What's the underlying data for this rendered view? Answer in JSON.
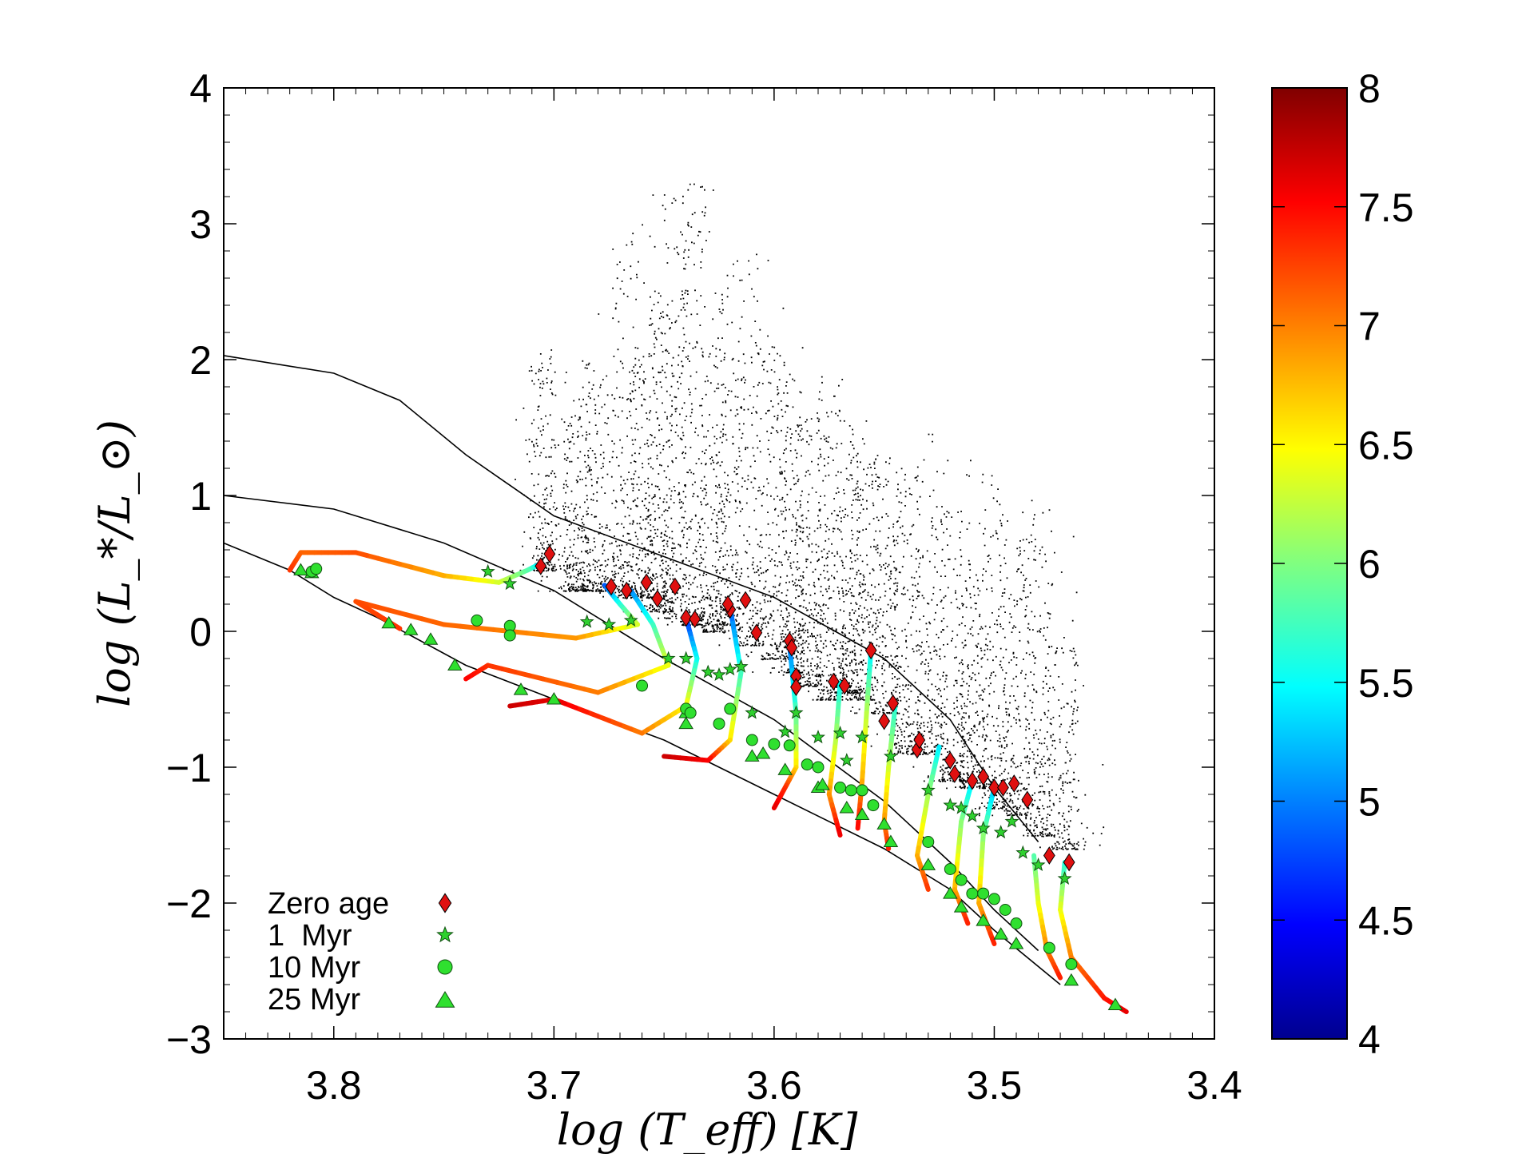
{
  "chart_data": {
    "type": "scatter",
    "title": "",
    "xlabel": "log (T_eff) [K]",
    "ylabel": "log (L_*/L_⊙)",
    "xlim": [
      3.85,
      3.4
    ],
    "ylim": [
      -3,
      4
    ],
    "x_ticks": [
      {
        "value": 3.8,
        "label": "3.8"
      },
      {
        "value": 3.7,
        "label": "3.7"
      },
      {
        "value": 3.6,
        "label": "3.6"
      },
      {
        "value": 3.5,
        "label": "3.5"
      },
      {
        "value": 3.4,
        "label": "3.4"
      }
    ],
    "y_ticks": [
      {
        "value": 4,
        "label": "4"
      },
      {
        "value": 3,
        "label": "3"
      },
      {
        "value": 2,
        "label": "2"
      },
      {
        "value": 1,
        "label": "1"
      },
      {
        "value": 0,
        "label": "0"
      },
      {
        "value": -1,
        "label": "−1"
      },
      {
        "value": -2,
        "label": "−2"
      },
      {
        "value": -3,
        "label": "−3"
      }
    ],
    "colorbar": {
      "range": [
        4,
        8
      ],
      "ticks": [
        {
          "value": 8,
          "label": "8"
        },
        {
          "value": 7.5,
          "label": "7.5"
        },
        {
          "value": 7,
          "label": "7"
        },
        {
          "value": 6.5,
          "label": "6.5"
        },
        {
          "value": 6,
          "label": "6"
        },
        {
          "value": 5.5,
          "label": "5.5"
        },
        {
          "value": 5,
          "label": "5"
        },
        {
          "value": 4.5,
          "label": "4.5"
        },
        {
          "value": 4,
          "label": "4"
        }
      ],
      "colors": [
        "#00008f",
        "#0000ff",
        "#0080ff",
        "#00ffff",
        "#80ff80",
        "#ffff00",
        "#ff8000",
        "#ff0000",
        "#800000"
      ]
    },
    "legend": {
      "position": "bottom-left",
      "entries": [
        {
          "label": "Zero age",
          "marker": "diamond",
          "color": "#e01010"
        },
        {
          "label": "1  Myr",
          "marker": "star",
          "color": "#2fd12f"
        },
        {
          "label": "10 Myr",
          "marker": "circle",
          "color": "#2fe02f"
        },
        {
          "label": "25 Myr",
          "marker": "triangle",
          "color": "#2fe02f"
        }
      ]
    },
    "isochrones": [
      {
        "name": "upper",
        "points": [
          [
            3.85,
            2.03
          ],
          [
            3.8,
            1.9
          ],
          [
            3.77,
            1.7
          ],
          [
            3.74,
            1.3
          ],
          [
            3.7,
            0.85
          ],
          [
            3.65,
            0.55
          ],
          [
            3.6,
            0.25
          ],
          [
            3.55,
            -0.2
          ],
          [
            3.52,
            -0.65
          ],
          [
            3.5,
            -1.15
          ],
          [
            3.48,
            -1.55
          ]
        ]
      },
      {
        "name": "middle",
        "points": [
          [
            3.85,
            1.0
          ],
          [
            3.8,
            0.9
          ],
          [
            3.75,
            0.65
          ],
          [
            3.7,
            0.3
          ],
          [
            3.65,
            -0.2
          ],
          [
            3.6,
            -0.65
          ],
          [
            3.55,
            -1.25
          ],
          [
            3.52,
            -1.7
          ],
          [
            3.5,
            -2.05
          ],
          [
            3.48,
            -2.35
          ]
        ]
      },
      {
        "name": "lower",
        "points": [
          [
            3.85,
            0.65
          ],
          [
            3.82,
            0.45
          ],
          [
            3.8,
            0.25
          ],
          [
            3.78,
            0.1
          ],
          [
            3.74,
            -0.25
          ],
          [
            3.7,
            -0.5
          ],
          [
            3.65,
            -0.8
          ],
          [
            3.6,
            -1.2
          ],
          [
            3.55,
            -1.6
          ],
          [
            3.52,
            -1.9
          ],
          [
            3.5,
            -2.2
          ],
          [
            3.47,
            -2.6
          ]
        ]
      }
    ],
    "tracks": [
      {
        "name": "T1",
        "points": [
          [
            3.706,
            0.5,
            5.2
          ],
          [
            3.712,
            0.45,
            5.8
          ],
          [
            3.725,
            0.36,
            6.3
          ],
          [
            3.75,
            0.41,
            6.8
          ],
          [
            3.79,
            0.58,
            7.2
          ],
          [
            3.815,
            0.58,
            7.1
          ],
          [
            3.82,
            0.45,
            7.3
          ]
        ]
      },
      {
        "name": "T2",
        "points": [
          [
            3.677,
            0.34,
            4.8
          ],
          [
            3.67,
            0.2,
            5.6
          ],
          [
            3.662,
            0.05,
            6.3
          ],
          [
            3.69,
            -0.05,
            6.9
          ],
          [
            3.75,
            0.05,
            7.1
          ],
          [
            3.79,
            0.22,
            7.2
          ],
          [
            3.77,
            0.02,
            7.3
          ]
        ]
      },
      {
        "name": "T3",
        "points": [
          [
            3.665,
            0.3,
            5.0
          ],
          [
            3.655,
            0.05,
            5.7
          ],
          [
            3.648,
            -0.25,
            6.4
          ],
          [
            3.68,
            -0.45,
            7.0
          ],
          [
            3.73,
            -0.25,
            7.3
          ],
          [
            3.74,
            -0.35,
            7.5
          ]
        ]
      },
      {
        "name": "T4",
        "points": [
          [
            3.64,
            0.1,
            4.6
          ],
          [
            3.635,
            -0.2,
            5.5
          ],
          [
            3.64,
            -0.55,
            6.5
          ],
          [
            3.66,
            -0.75,
            7.0
          ],
          [
            3.7,
            -0.5,
            7.6
          ],
          [
            3.72,
            -0.55,
            7.7
          ]
        ]
      },
      {
        "name": "T5",
        "points": [
          [
            3.62,
            0.18,
            4.8
          ],
          [
            3.615,
            -0.3,
            5.7
          ],
          [
            3.62,
            -0.8,
            6.6
          ],
          [
            3.63,
            -0.95,
            7.5
          ],
          [
            3.65,
            -0.92,
            7.7
          ]
        ]
      },
      {
        "name": "T6",
        "points": [
          [
            3.593,
            -0.1,
            4.9
          ],
          [
            3.59,
            -0.6,
            5.8
          ],
          [
            3.59,
            -1.0,
            6.6
          ],
          [
            3.595,
            -1.15,
            7.3
          ],
          [
            3.6,
            -1.3,
            7.6
          ]
        ]
      },
      {
        "name": "T7",
        "points": [
          [
            3.57,
            -0.38,
            5.5
          ],
          [
            3.572,
            -0.8,
            6.2
          ],
          [
            3.575,
            -1.2,
            6.9
          ],
          [
            3.57,
            -1.5,
            7.6
          ]
        ]
      },
      {
        "name": "T8",
        "points": [
          [
            3.556,
            -0.14,
            5.4
          ],
          [
            3.558,
            -0.6,
            6.2
          ],
          [
            3.56,
            -1.1,
            6.8
          ],
          [
            3.562,
            -1.45,
            7.5
          ]
        ]
      },
      {
        "name": "T9",
        "points": [
          [
            3.545,
            -0.55,
            5.6
          ],
          [
            3.548,
            -1.0,
            6.3
          ],
          [
            3.55,
            -1.4,
            6.9
          ],
          [
            3.548,
            -1.6,
            7.4
          ]
        ]
      },
      {
        "name": "T10",
        "points": [
          [
            3.525,
            -0.85,
            5.4
          ],
          [
            3.53,
            -1.2,
            6.1
          ],
          [
            3.535,
            -1.65,
            6.8
          ],
          [
            3.53,
            -1.9,
            7.3
          ]
        ]
      },
      {
        "name": "T11",
        "points": [
          [
            3.51,
            -1.1,
            5.3
          ],
          [
            3.515,
            -1.4,
            6.0
          ],
          [
            3.518,
            -1.9,
            6.8
          ],
          [
            3.512,
            -2.15,
            7.4
          ]
        ]
      },
      {
        "name": "T12",
        "points": [
          [
            3.5,
            -1.15,
            5.2
          ],
          [
            3.505,
            -1.5,
            6.0
          ],
          [
            3.507,
            -2.0,
            6.8
          ],
          [
            3.5,
            -2.3,
            7.4
          ]
        ]
      },
      {
        "name": "T13",
        "points": [
          [
            3.482,
            -1.65,
            5.8
          ],
          [
            3.48,
            -2.0,
            6.4
          ],
          [
            3.476,
            -2.35,
            7.0
          ],
          [
            3.47,
            -2.55,
            7.4
          ]
        ]
      },
      {
        "name": "T14",
        "points": [
          [
            3.468,
            -1.7,
            5.6
          ],
          [
            3.47,
            -2.05,
            6.4
          ],
          [
            3.465,
            -2.4,
            7.0
          ],
          [
            3.45,
            -2.7,
            7.4
          ],
          [
            3.44,
            -2.8,
            7.6
          ]
        ]
      }
    ],
    "markers": {
      "zero_age": [
        [
          3.706,
          0.48
        ],
        [
          3.702,
          0.57
        ],
        [
          3.674,
          0.33
        ],
        [
          3.667,
          0.3
        ],
        [
          3.658,
          0.36
        ],
        [
          3.653,
          0.24
        ],
        [
          3.645,
          0.33
        ],
        [
          3.64,
          0.1
        ],
        [
          3.636,
          0.09
        ],
        [
          3.62,
          0.16
        ],
        [
          3.621,
          0.2
        ],
        [
          3.613,
          0.23
        ],
        [
          3.608,
          -0.01
        ],
        [
          3.593,
          -0.07
        ],
        [
          3.592,
          -0.12
        ],
        [
          3.59,
          -0.33
        ],
        [
          3.59,
          -0.41
        ],
        [
          3.573,
          -0.37
        ],
        [
          3.568,
          -0.4
        ],
        [
          3.556,
          -0.14
        ],
        [
          3.55,
          -0.66
        ],
        [
          3.546,
          -0.53
        ],
        [
          3.535,
          -0.87
        ],
        [
          3.534,
          -0.8
        ],
        [
          3.52,
          -0.95
        ],
        [
          3.518,
          -1.05
        ],
        [
          3.51,
          -1.1
        ],
        [
          3.505,
          -1.07
        ],
        [
          3.5,
          -1.15
        ],
        [
          3.496,
          -1.15
        ],
        [
          3.491,
          -1.12
        ],
        [
          3.485,
          -1.24
        ],
        [
          3.475,
          -1.65
        ],
        [
          3.466,
          -1.7
        ]
      ],
      "myr1": [
        [
          3.73,
          0.44
        ],
        [
          3.72,
          0.35
        ],
        [
          3.685,
          0.07
        ],
        [
          3.675,
          0.05
        ],
        [
          3.665,
          0.08
        ],
        [
          3.648,
          -0.2
        ],
        [
          3.64,
          -0.2
        ],
        [
          3.63,
          -0.3
        ],
        [
          3.625,
          -0.32
        ],
        [
          3.62,
          -0.28
        ],
        [
          3.615,
          -0.26
        ],
        [
          3.61,
          -0.6
        ],
        [
          3.595,
          -0.74
        ],
        [
          3.59,
          -0.6
        ],
        [
          3.58,
          -0.78
        ],
        [
          3.57,
          -0.75
        ],
        [
          3.567,
          -0.95
        ],
        [
          3.56,
          -0.78
        ],
        [
          3.547,
          -0.92
        ],
        [
          3.53,
          -1.17
        ],
        [
          3.52,
          -1.28
        ],
        [
          3.515,
          -1.3
        ],
        [
          3.51,
          -1.36
        ],
        [
          3.505,
          -1.45
        ],
        [
          3.497,
          -1.48
        ],
        [
          3.492,
          -1.4
        ],
        [
          3.487,
          -1.63
        ],
        [
          3.48,
          -1.72
        ],
        [
          3.468,
          -1.82
        ]
      ],
      "myr10": [
        [
          3.81,
          0.44
        ],
        [
          3.808,
          0.46
        ],
        [
          3.735,
          0.08
        ],
        [
          3.72,
          0.04
        ],
        [
          3.72,
          -0.03
        ],
        [
          3.66,
          -0.4
        ],
        [
          3.64,
          -0.57
        ],
        [
          3.638,
          -0.6
        ],
        [
          3.625,
          -0.68
        ],
        [
          3.62,
          -0.57
        ],
        [
          3.61,
          -0.8
        ],
        [
          3.6,
          -0.83
        ],
        [
          3.593,
          -0.84
        ],
        [
          3.585,
          -0.98
        ],
        [
          3.58,
          -1.0
        ],
        [
          3.57,
          -1.15
        ],
        [
          3.565,
          -1.17
        ],
        [
          3.56,
          -1.17
        ],
        [
          3.555,
          -1.28
        ],
        [
          3.53,
          -1.55
        ],
        [
          3.52,
          -1.75
        ],
        [
          3.515,
          -1.83
        ],
        [
          3.51,
          -1.93
        ],
        [
          3.505,
          -1.93
        ],
        [
          3.5,
          -1.97
        ],
        [
          3.495,
          -2.05
        ],
        [
          3.49,
          -2.15
        ],
        [
          3.475,
          -2.33
        ],
        [
          3.465,
          -2.45
        ]
      ],
      "myr25": [
        [
          3.815,
          0.45
        ],
        [
          3.81,
          0.43
        ],
        [
          3.775,
          0.06
        ],
        [
          3.765,
          0.01
        ],
        [
          3.756,
          -0.06
        ],
        [
          3.745,
          -0.25
        ],
        [
          3.715,
          -0.43
        ],
        [
          3.7,
          -0.5
        ],
        [
          3.64,
          -0.6
        ],
        [
          3.64,
          -0.68
        ],
        [
          3.61,
          -0.92
        ],
        [
          3.605,
          -0.9
        ],
        [
          3.595,
          -1.02
        ],
        [
          3.58,
          -1.15
        ],
        [
          3.578,
          -1.13
        ],
        [
          3.567,
          -1.3
        ],
        [
          3.56,
          -1.35
        ],
        [
          3.55,
          -1.42
        ],
        [
          3.547,
          -1.55
        ],
        [
          3.53,
          -1.72
        ],
        [
          3.52,
          -1.93
        ],
        [
          3.515,
          -2.03
        ],
        [
          3.505,
          -2.13
        ],
        [
          3.497,
          -2.23
        ],
        [
          3.49,
          -2.3
        ],
        [
          3.465,
          -2.57
        ],
        [
          3.445,
          -2.75
        ]
      ]
    },
    "observed_points": {
      "description": "dense cloud of small black dots (observed stars)",
      "count": 6000,
      "x_range": [
        3.71,
        3.46
      ],
      "y_range": [
        -1.8,
        3.45
      ]
    }
  }
}
